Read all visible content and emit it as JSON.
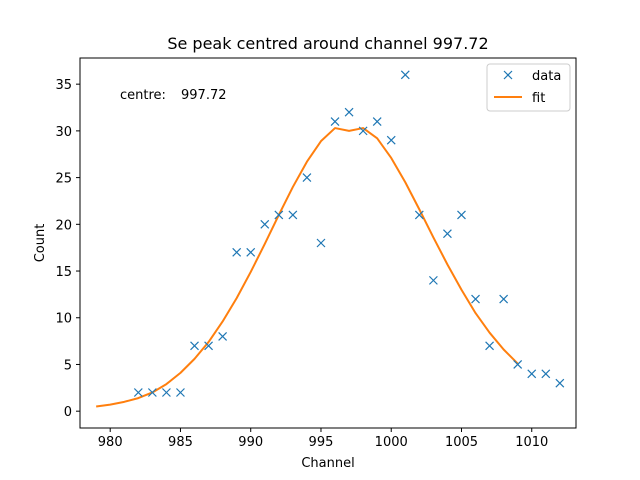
{
  "chart_data": {
    "type": "scatter",
    "title": "Se peak centred around channel 997.72",
    "xlabel": "Channel",
    "ylabel": "Count",
    "xlim": [
      977.85,
      1013.15
    ],
    "ylim": [
      -1.8,
      37.8
    ],
    "xticks": [
      980,
      985,
      990,
      995,
      1000,
      1005,
      1010
    ],
    "yticks": [
      0,
      5,
      10,
      15,
      20,
      25,
      30,
      35
    ],
    "grid": false,
    "legend_position": "top-right",
    "annotation": {
      "label": "centre:",
      "value": "997.72"
    },
    "series": [
      {
        "name": "data",
        "kind": "scatter",
        "marker": "x",
        "color": "#1f77b4",
        "x": [
          982,
          983,
          984,
          985,
          986,
          987,
          988,
          989,
          990,
          991,
          992,
          993,
          994,
          995,
          996,
          997,
          998,
          999,
          1000,
          1001,
          1002,
          1003,
          1004,
          1005,
          1006,
          1007,
          1008,
          1009,
          1010,
          1011,
          1012
        ],
        "y": [
          2,
          2,
          2,
          2,
          7,
          7,
          8,
          17,
          17,
          20,
          21,
          21,
          25,
          18,
          31,
          32,
          30,
          31,
          29,
          36,
          21,
          14,
          19,
          21,
          12,
          7,
          12,
          5,
          4,
          4,
          3
        ]
      },
      {
        "name": "fit",
        "kind": "line",
        "color": "#ff7f0e",
        "x": [
          979,
          980,
          981,
          982,
          983,
          984,
          985,
          986,
          987,
          988,
          989,
          990,
          991,
          992,
          993,
          994,
          995,
          996,
          997,
          998,
          999,
          1000,
          1001,
          1002,
          1003,
          1004,
          1005,
          1006,
          1007,
          1008,
          1009
        ],
        "y": [
          0.5,
          0.7,
          1.0,
          1.4,
          2.0,
          2.9,
          4.1,
          5.6,
          7.4,
          9.6,
          12.1,
          14.9,
          17.9,
          21.0,
          24.0,
          26.7,
          28.9,
          30.3,
          30.0,
          30.3,
          29.2,
          27.1,
          24.5,
          21.6,
          18.6,
          15.7,
          13.0,
          10.5,
          8.4,
          6.6,
          5.1
        ]
      }
    ]
  }
}
